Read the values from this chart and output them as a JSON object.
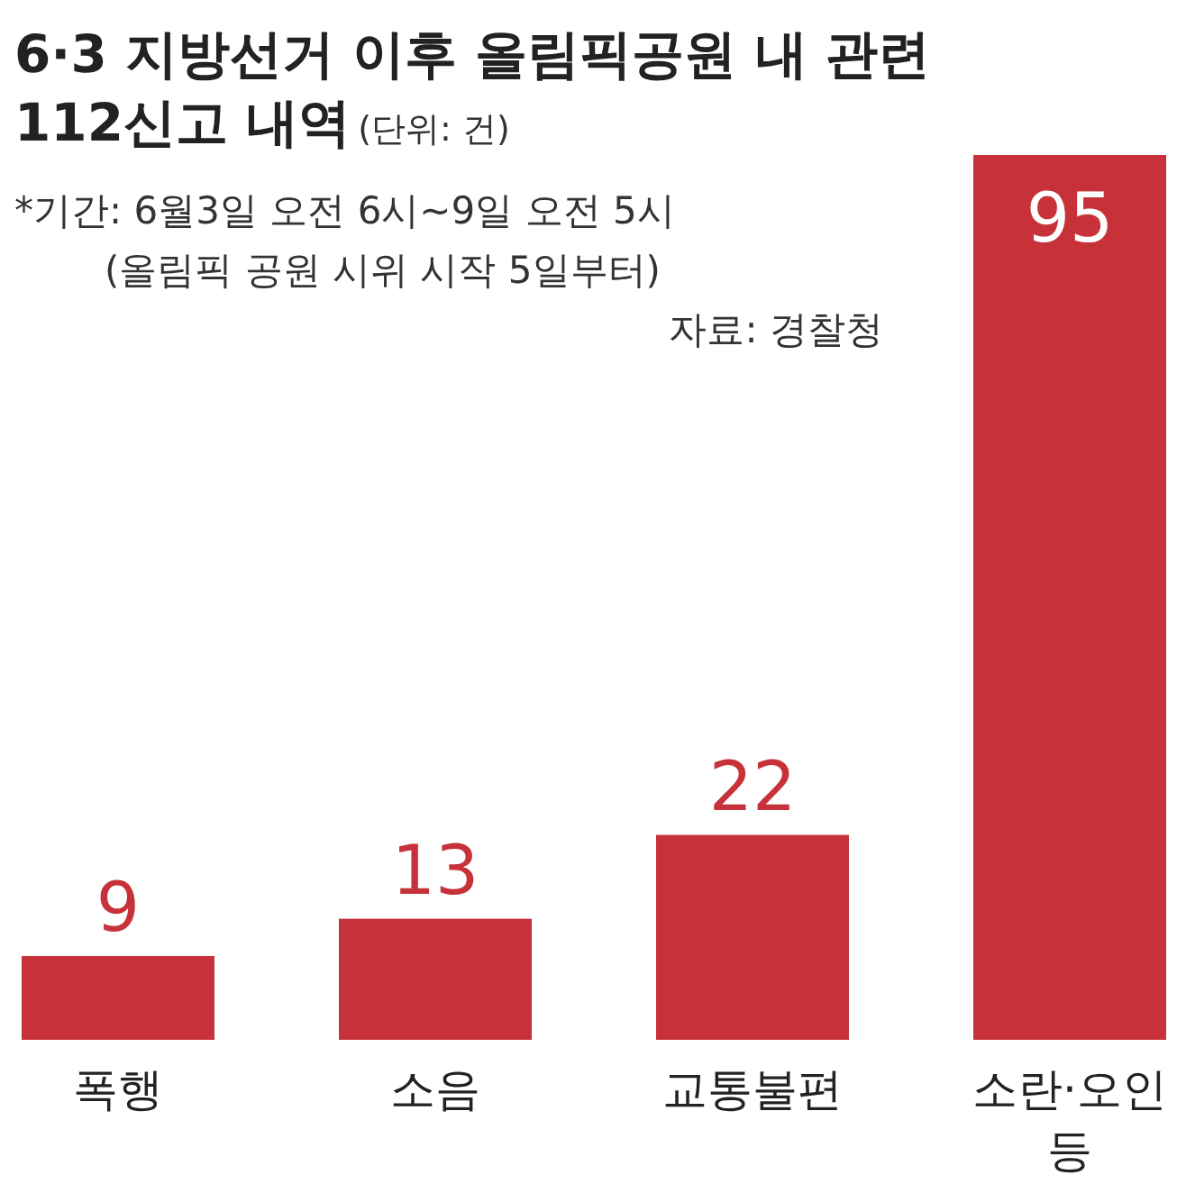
{
  "chart_data": {
    "type": "bar",
    "title": "6·3 지방선거 이후 올림픽공원 내 관련 112신고 내역",
    "subtitle": "(단위: 건)",
    "annotations": [
      "*기간: 6월3일 오전 6시~9일 오전 5시\n(올림픽 공원 시위 시작 5일부터)",
      "자료: 경찰청"
    ],
    "categories": [
      "폭행",
      "소음",
      "교통불편",
      "소란·오인 등"
    ],
    "values": [
      9,
      13,
      22,
      95
    ],
    "color": "#c7323a",
    "data_labels": true
  }
}
